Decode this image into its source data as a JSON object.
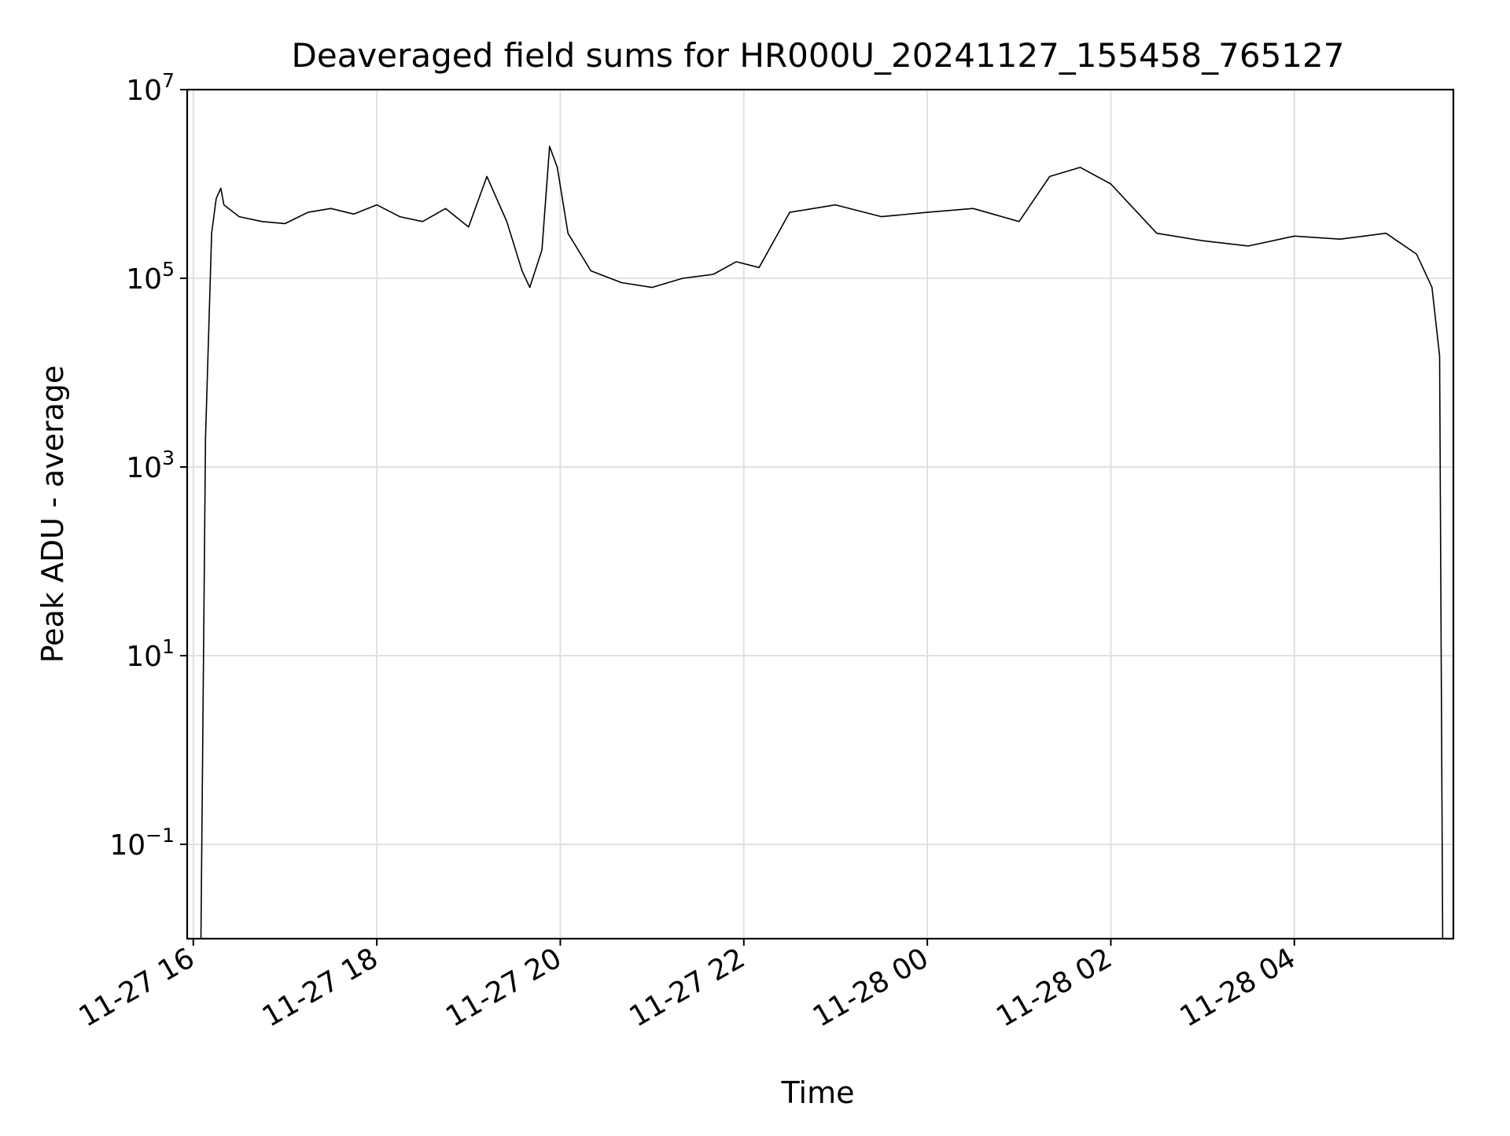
{
  "chart_data": {
    "type": "line",
    "title": "Deaveraged field sums for HR000U_20241127_155458_765127",
    "xlabel": "Time",
    "ylabel": "Peak ADU - average",
    "yscale": "log",
    "ylim": [
      0.01,
      10000000
    ],
    "xlim": [
      "11-27 15:56",
      "11-28 05:44"
    ],
    "grid": true,
    "line_color": "#000000",
    "x_ticks": [
      {
        "time": "11-27 16:00",
        "label": "11-27 16"
      },
      {
        "time": "11-27 18:00",
        "label": "11-27 18"
      },
      {
        "time": "11-27 20:00",
        "label": "11-27 20"
      },
      {
        "time": "11-27 22:00",
        "label": "11-27 22"
      },
      {
        "time": "11-28 00:00",
        "label": "11-28 00"
      },
      {
        "time": "11-28 02:00",
        "label": "11-28 02"
      },
      {
        "time": "11-28 04:00",
        "label": "11-28 04"
      }
    ],
    "y_ticks": [
      {
        "value": 0.1,
        "base": "10",
        "exp": "−1"
      },
      {
        "value": 10,
        "base": "10",
        "exp": "1"
      },
      {
        "value": 1000,
        "base": "10",
        "exp": "3"
      },
      {
        "value": 100000,
        "base": "10",
        "exp": "5"
      },
      {
        "value": 10000000,
        "base": "10",
        "exp": "7"
      }
    ],
    "series": [
      {
        "x": [
          "11-27 16:05",
          "11-27 16:08",
          "11-27 16:12",
          "11-27 16:15",
          "11-27 16:18",
          "11-27 16:20",
          "11-27 16:30",
          "11-27 16:45",
          "11-27 17:00",
          "11-27 17:15",
          "11-27 17:30",
          "11-27 17:45",
          "11-27 18:00",
          "11-27 18:15",
          "11-27 18:30",
          "11-27 18:45",
          "11-27 19:00",
          "11-27 19:12",
          "11-27 19:25",
          "11-27 19:35",
          "11-27 19:40",
          "11-27 19:48",
          "11-27 19:53",
          "11-27 19:58",
          "11-27 20:05",
          "11-27 20:20",
          "11-27 20:40",
          "11-27 21:00",
          "11-27 21:20",
          "11-27 21:40",
          "11-27 21:55",
          "11-27 22:10",
          "11-27 22:30",
          "11-27 23:00",
          "11-27 23:30",
          "11-28 00:00",
          "11-28 00:30",
          "11-28 01:00",
          "11-28 01:20",
          "11-28 01:40",
          "11-28 02:00",
          "11-28 02:30",
          "11-28 03:00",
          "11-28 03:30",
          "11-28 04:00",
          "11-28 04:30",
          "11-28 05:00",
          "11-28 05:20",
          "11-28 05:30",
          "11-28 05:35",
          "11-28 05:37"
        ],
        "y": [
          0.01,
          2000,
          300000,
          700000,
          900000,
          600000,
          450000,
          400000,
          380000,
          500000,
          550000,
          480000,
          600000,
          450000,
          400000,
          550000,
          350000,
          1200000,
          400000,
          120000,
          80000,
          200000,
          2500000,
          1500000,
          300000,
          120000,
          90000,
          80000,
          100000,
          110000,
          150000,
          130000,
          500000,
          600000,
          450000,
          500000,
          550000,
          400000,
          1200000,
          1500000,
          1000000,
          300000,
          250000,
          220000,
          280000,
          260000,
          300000,
          180000,
          80000,
          15000,
          0.01
        ]
      }
    ]
  }
}
